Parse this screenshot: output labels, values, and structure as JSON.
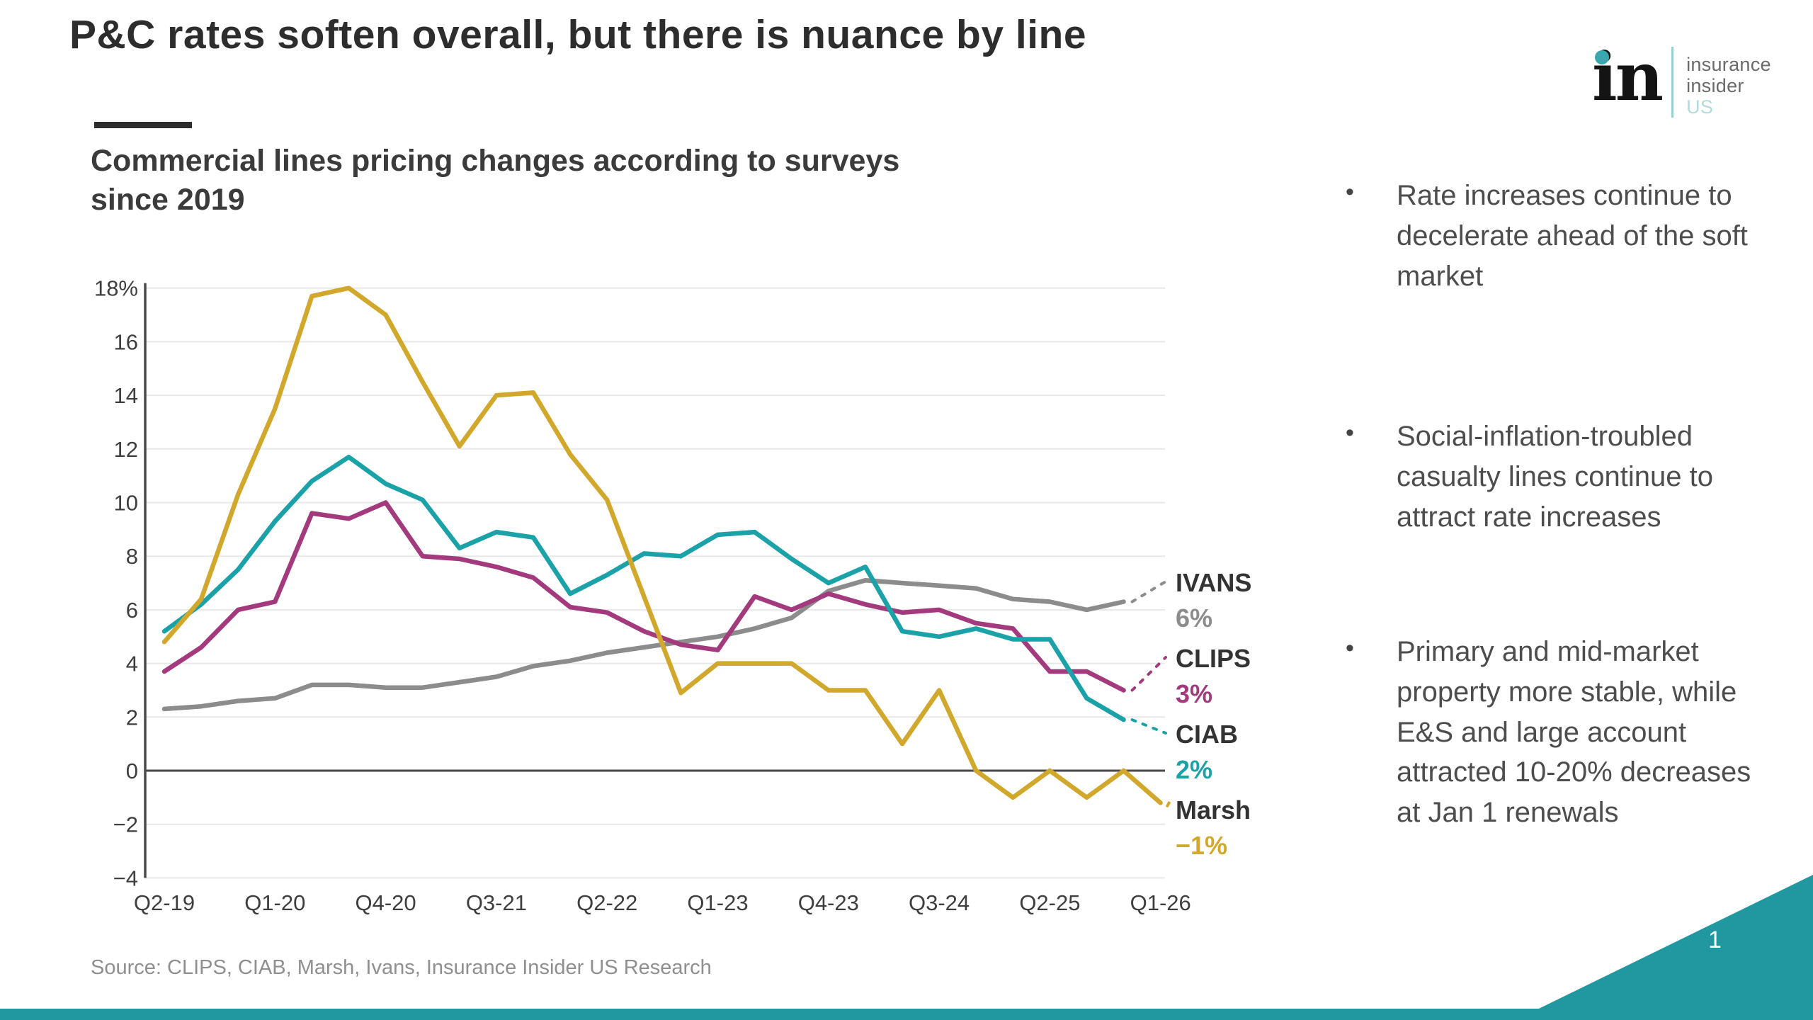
{
  "slide": {
    "title": "P&C rates soften overall, but there is nuance by line",
    "page_number": "1",
    "source": "Source: CLIPS, CIAB, Marsh, Ivans, Insurance Insider US Research"
  },
  "logo": {
    "monogram": "in",
    "wordmark_line1": "insurance",
    "wordmark_line2": "insider",
    "wordmark_line3": "US"
  },
  "chart_heading": {
    "line1": "Commercial lines pricing changes according to surveys",
    "line2": "since 2019"
  },
  "bullets": [
    "Rate increases continue to decelerate ahead of the soft market",
    "Social-inflation-troubled casualty lines continue to attract rate increases",
    "Primary and mid-market property more stable, while E&S and large account attracted 10-20% decreases at Jan 1 renewals"
  ],
  "bullet_marker": "•",
  "chart_data": {
    "type": "line",
    "title": "Commercial lines pricing changes according to surveys since 2019",
    "xlabel": "",
    "ylabel": "",
    "ylim": [
      -4,
      18
    ],
    "grid": true,
    "legend_position": "right-end-labels",
    "y_tick_labels": [
      "18%",
      "16",
      "14",
      "12",
      "10",
      "8",
      "6",
      "4",
      "2",
      "0",
      "−2",
      "−4"
    ],
    "x_tick_labels": [
      "Q2-19",
      "Q1-20",
      "Q4-20",
      "Q3-21",
      "Q2-22",
      "Q1-23",
      "Q4-23",
      "Q3-24",
      "Q2-25",
      "Q1-26"
    ],
    "x_tick_every": 3,
    "categories": [
      "Q2-19",
      "Q3-19",
      "Q4-19",
      "Q1-20",
      "Q2-20",
      "Q3-20",
      "Q4-20",
      "Q1-21",
      "Q2-21",
      "Q3-21",
      "Q4-21",
      "Q1-22",
      "Q2-22",
      "Q3-22",
      "Q4-22",
      "Q1-23",
      "Q2-23",
      "Q3-23",
      "Q4-23",
      "Q1-24",
      "Q2-24",
      "Q3-24",
      "Q4-24",
      "Q1-25",
      "Q2-25",
      "Q3-25",
      "Q4-25",
      "Q1-26"
    ],
    "series": [
      {
        "name": "IVANS",
        "end_label": "6%",
        "color": "#8c8c8c",
        "values": [
          2.3,
          2.4,
          2.6,
          2.7,
          3.2,
          3.2,
          3.1,
          3.1,
          3.3,
          3.5,
          3.9,
          4.1,
          4.4,
          4.6,
          4.8,
          5.0,
          5.3,
          5.7,
          6.7,
          7.1,
          7.0,
          6.9,
          6.8,
          6.4,
          6.3,
          6.0,
          6.3,
          null
        ]
      },
      {
        "name": "CLIPS",
        "end_label": "3%",
        "color": "#a23a7d",
        "values": [
          3.7,
          4.6,
          6.0,
          6.3,
          9.6,
          9.4,
          10.0,
          8.0,
          7.9,
          7.6,
          7.2,
          6.1,
          5.9,
          5.2,
          4.7,
          4.5,
          6.5,
          6.0,
          6.6,
          6.2,
          5.9,
          6.0,
          5.5,
          5.3,
          3.7,
          3.7,
          3.0,
          null
        ]
      },
      {
        "name": "CIAB",
        "end_label": "2%",
        "color": "#1aa2a8",
        "values": [
          5.2,
          6.2,
          7.5,
          9.3,
          10.8,
          11.7,
          10.7,
          10.1,
          8.3,
          8.9,
          8.7,
          6.6,
          7.3,
          8.1,
          8.0,
          8.8,
          8.9,
          7.9,
          7.0,
          7.6,
          5.2,
          5.0,
          5.3,
          4.9,
          4.9,
          2.7,
          1.9,
          null
        ]
      },
      {
        "name": "Marsh",
        "end_label": "−1%",
        "color": "#d1a82b",
        "values": [
          4.8,
          6.4,
          10.3,
          13.5,
          17.7,
          18.0,
          17.0,
          14.5,
          12.1,
          14.0,
          14.1,
          11.8,
          10.1,
          6.5,
          2.9,
          4.0,
          4.0,
          4.0,
          3.0,
          3.0,
          1.0,
          3.0,
          0.0,
          -1.0,
          0.0,
          -1.0,
          0.0,
          -1.2
        ]
      }
    ]
  }
}
